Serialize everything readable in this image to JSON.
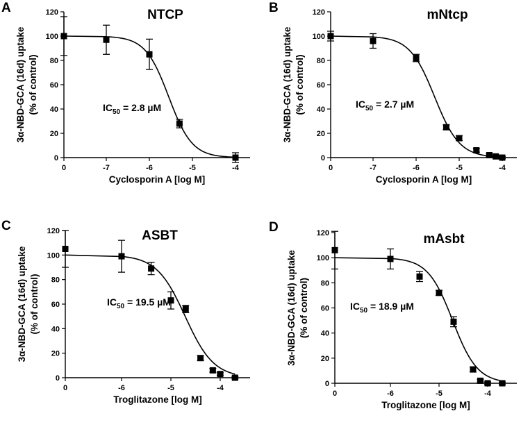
{
  "chart_data": [
    {
      "panel": "A",
      "type": "scatter",
      "title": "NTCP",
      "xlabel": "Cyclosporin A [log M]",
      "ylabel_line1": "3α-NBD-GCA (16d) uptake",
      "ylabel_line2": "(% of control)",
      "annotation": {
        "prefix": "IC",
        "sub": "50",
        "rest": " = 2.8 µM"
      },
      "ylim": [
        0,
        120
      ],
      "yticks": [
        0,
        20,
        40,
        60,
        80,
        100,
        120
      ],
      "xticks": [
        {
          "value": 0,
          "label": "0"
        },
        {
          "value": -7,
          "label": "-7"
        },
        {
          "value": -6,
          "label": "-6"
        },
        {
          "value": -5,
          "label": "-5"
        },
        {
          "value": -4,
          "label": "-4"
        }
      ],
      "fit": {
        "top": 100,
        "bottom": 0,
        "logIC50": -5.55,
        "hill": 1.6
      },
      "points": [
        {
          "x": 0,
          "y": 100,
          "err": 16
        },
        {
          "x": -7,
          "y": 97,
          "err": 12
        },
        {
          "x": -6,
          "y": 85,
          "err": 12.5
        },
        {
          "x": -5.3,
          "y": 28,
          "err": 3.5
        },
        {
          "x": -4,
          "y": 0,
          "err": 4
        }
      ]
    },
    {
      "panel": "B",
      "type": "scatter",
      "title": "mNtcp",
      "xlabel": "Cyclosporin A [log M]",
      "ylabel_line1": "3α-NBD-GCA (16d) uptake",
      "ylabel_line2": "(% of control)",
      "annotation": {
        "prefix": "IC",
        "sub": "50",
        "rest": " = 2.7 µM"
      },
      "ylim": [
        0,
        120
      ],
      "yticks": [
        0,
        20,
        40,
        60,
        80,
        100,
        120
      ],
      "xticks": [
        {
          "value": 0,
          "label": "0"
        },
        {
          "value": -7,
          "label": "-7"
        },
        {
          "value": -6,
          "label": "-6"
        },
        {
          "value": -5,
          "label": "-5"
        },
        {
          "value": -4,
          "label": "-4"
        }
      ],
      "fit": {
        "top": 100,
        "bottom": 0,
        "logIC50": -5.57,
        "hill": 1.5
      },
      "points": [
        {
          "x": 0,
          "y": 100,
          "err": 4
        },
        {
          "x": -7,
          "y": 96,
          "err": 6
        },
        {
          "x": -6,
          "y": 82,
          "err": 3
        },
        {
          "x": -5.3,
          "y": 25,
          "err": 2
        },
        {
          "x": -5,
          "y": 16,
          "err": 2
        },
        {
          "x": -4.6,
          "y": 6,
          "err": 1.5
        },
        {
          "x": -4.3,
          "y": 2,
          "err": 1
        },
        {
          "x": -4.15,
          "y": 1,
          "err": 1
        },
        {
          "x": -4,
          "y": 0,
          "err": 1
        }
      ]
    },
    {
      "panel": "C",
      "type": "scatter",
      "title": "ASBT",
      "xlabel": "Troglitazone [log M]",
      "ylabel_line1": "3α-NBD-GCA (16d) uptake",
      "ylabel_line2": "(% of control)",
      "annotation": {
        "prefix": "IC",
        "sub": "50",
        "rest": " = 19.5 µM"
      },
      "ylim": [
        0,
        120
      ],
      "yticks": [
        0,
        20,
        40,
        60,
        80,
        100,
        120
      ],
      "xticks": [
        {
          "value": 0,
          "label": "0"
        },
        {
          "value": -6,
          "label": "-6"
        },
        {
          "value": -5,
          "label": "-5"
        },
        {
          "value": -4,
          "label": "-4"
        }
      ],
      "fit": {
        "top": 100,
        "bottom": 0,
        "logIC50": -4.71,
        "hill": 1.5
      },
      "points": [
        {
          "x": 0,
          "y": 105,
          "err": 15
        },
        {
          "x": -6,
          "y": 99,
          "err": 13
        },
        {
          "x": -5.4,
          "y": 89,
          "err": 5
        },
        {
          "x": -5,
          "y": 63,
          "err": 7
        },
        {
          "x": -4.7,
          "y": 56,
          "err": 3
        },
        {
          "x": -4.4,
          "y": 16,
          "err": 2
        },
        {
          "x": -4.15,
          "y": 6,
          "err": 1.5
        },
        {
          "x": -4,
          "y": 3,
          "err": 1
        },
        {
          "x": -3.7,
          "y": 0,
          "err": 1
        }
      ]
    },
    {
      "panel": "D",
      "type": "scatter",
      "title": "mAsbt",
      "xlabel": "Troglitazone [log M]",
      "ylabel_line1": "3α-NBD-GCA (16d) uptake",
      "ylabel_line2": "(% of control)",
      "annotation": {
        "prefix": "IC",
        "sub": "50",
        "rest": " = 18.9 µM"
      },
      "ylim": [
        0,
        120
      ],
      "yticks": [
        0,
        20,
        40,
        60,
        80,
        100,
        120
      ],
      "xticks": [
        {
          "value": 0,
          "label": "0"
        },
        {
          "value": -6,
          "label": "-6"
        },
        {
          "value": -5,
          "label": "-5"
        },
        {
          "value": -4,
          "label": "-4"
        }
      ],
      "fit": {
        "top": 100,
        "bottom": 0,
        "logIC50": -4.72,
        "hill": 1.7
      },
      "points": [
        {
          "x": 0,
          "y": 106,
          "err": 15
        },
        {
          "x": -6,
          "y": 99,
          "err": 8
        },
        {
          "x": -5.4,
          "y": 85,
          "err": 4
        },
        {
          "x": -5,
          "y": 72,
          "err": 2
        },
        {
          "x": -4.7,
          "y": 49,
          "err": 4
        },
        {
          "x": -4.3,
          "y": 11,
          "err": 2
        },
        {
          "x": -4.15,
          "y": 2,
          "err": 1
        },
        {
          "x": -4,
          "y": 0,
          "err": 1
        },
        {
          "x": -3.7,
          "y": 0,
          "err": 1
        }
      ]
    }
  ]
}
